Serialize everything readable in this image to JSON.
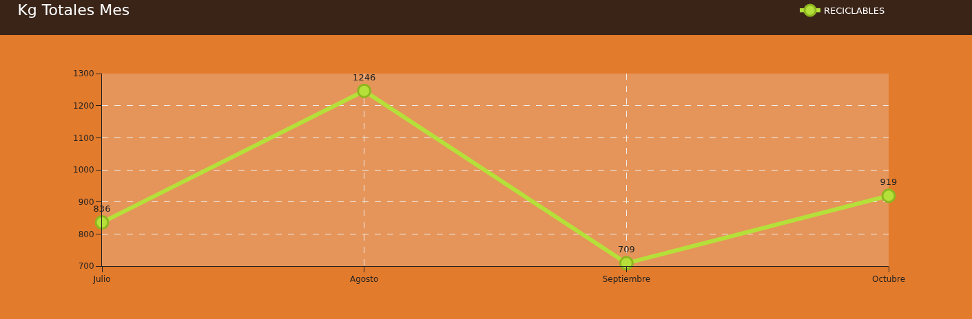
{
  "chart_data": {
    "type": "line",
    "title": "Kg Totales Mes",
    "categories": [
      "Julio",
      "Agosto",
      "Septiembre",
      "Octubre"
    ],
    "series": [
      {
        "name": "RECICLABLES",
        "color": "#b5e03a",
        "values": [
          836,
          1246,
          709,
          919
        ]
      }
    ],
    "ylim": [
      700,
      1300
    ],
    "yticks": [
      700,
      800,
      900,
      1000,
      1100,
      1200,
      1300
    ],
    "grid": true,
    "legend": "top right",
    "marker": "circle",
    "line_style": "solid",
    "data_labels": true
  }
}
